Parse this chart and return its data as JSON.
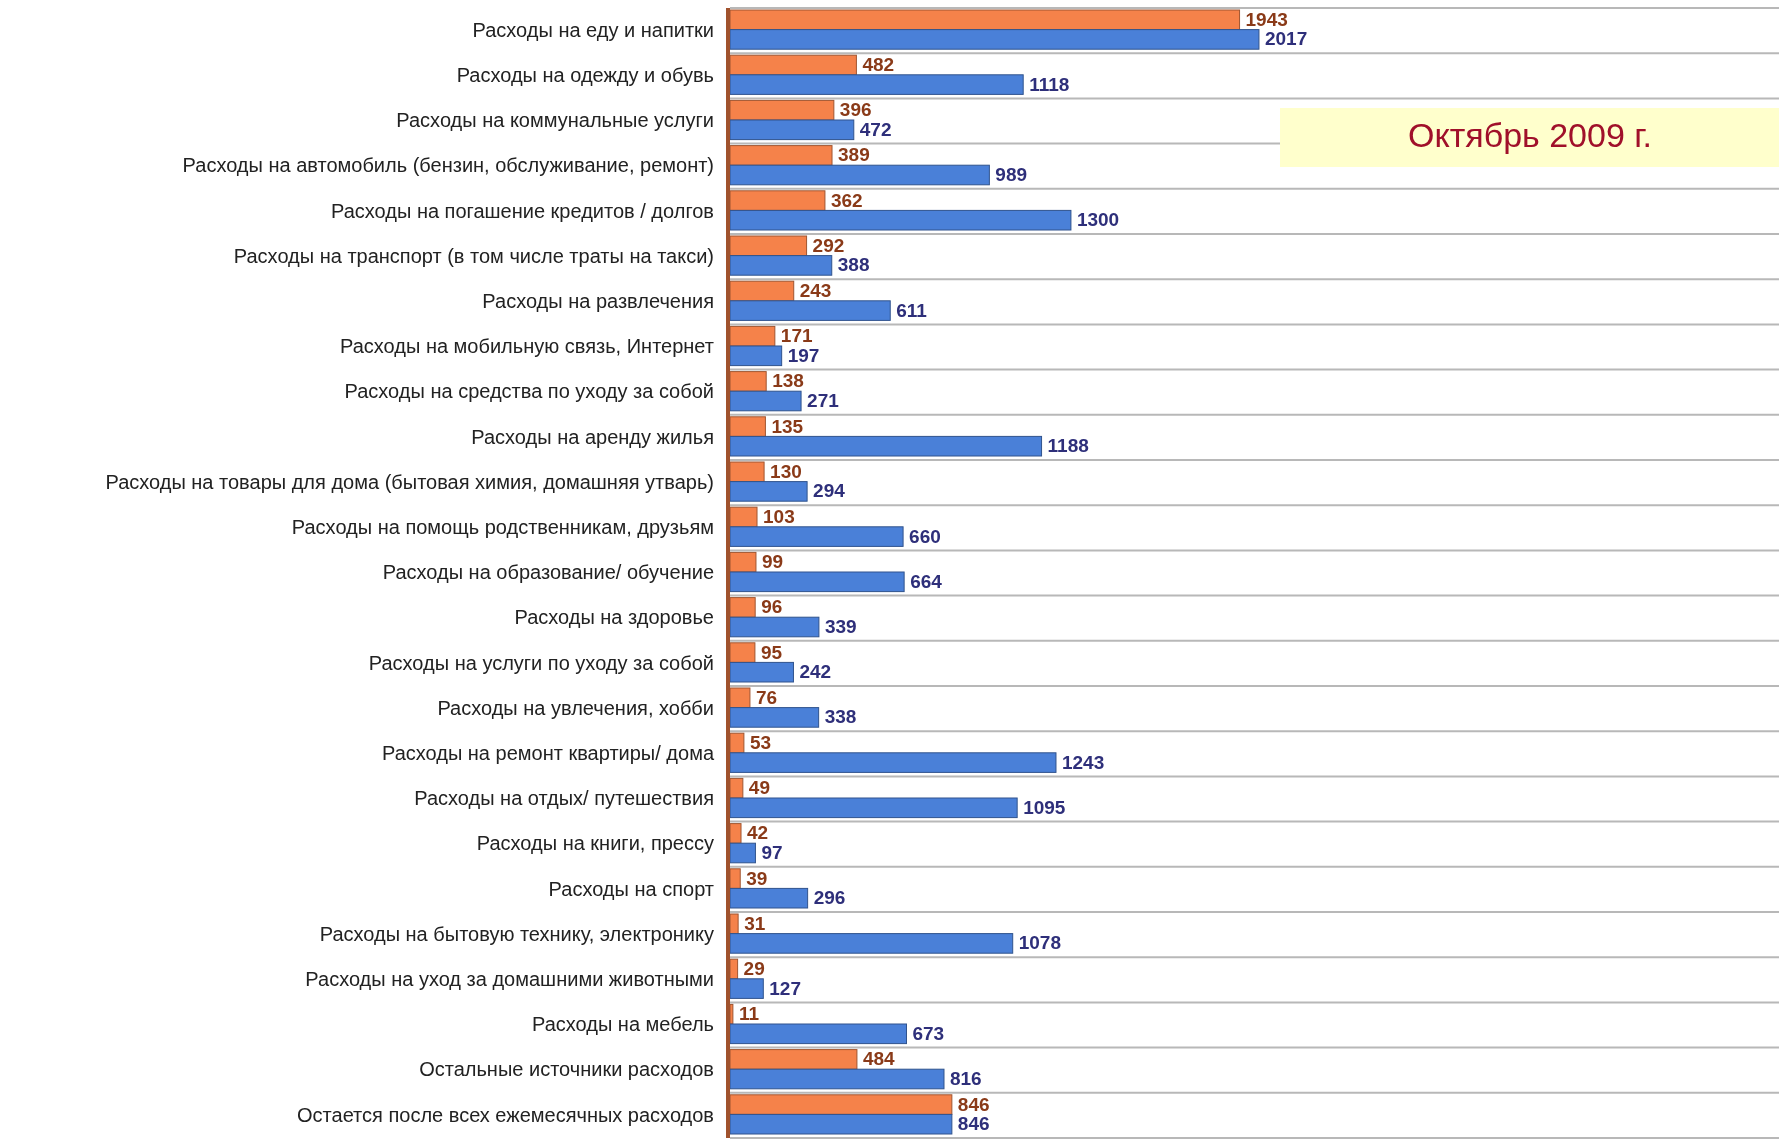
{
  "chart_data": {
    "type": "bar",
    "orientation": "horizontal",
    "data_labels": true,
    "grid": "y",
    "xlim": [
      0,
      4000
    ],
    "tick_labels": "y",
    "categories": [
      "Расходы на еду и напитки",
      "Расходы на одежду и обувь",
      "Расходы на коммунальные услуги",
      "Расходы на автомобиль (бензин, обслуживание, ремонт)",
      "Расходы на погашение кредитов / долгов",
      "Расходы на транспорт (в том числе траты на такси)",
      "Расходы на развлечения",
      "Расходы на мобильную связь, Интернет",
      "Расходы на средства по уходу за собой",
      "Расходы на аренду жилья",
      "Расходы на товары для дома (бытовая химия, домашняя утварь)",
      "Расходы на помощь родственникам, друзьям",
      "Расходы на образование/ обучение",
      "Расходы на здоровье",
      "Расходы на услуги по уходу за собой",
      "Расходы на увлечения, хобби",
      "Расходы на ремонт квартиры/ дома",
      "Расходы на отдых/ путешествия",
      "Расходы на книги, прессу",
      "Расходы на спорт",
      "Расходы на бытовую технику, электронику",
      "Расходы на уход за домашними животными",
      "Расходы на мебель",
      "Остальные источники расходов",
      "Остается после всех ежемесячных расходов"
    ],
    "series": [
      {
        "color": "#f5824a",
        "values": [
          1943,
          482,
          396,
          389,
          362,
          292,
          243,
          171,
          138,
          135,
          130,
          103,
          99,
          96,
          95,
          76,
          53,
          49,
          42,
          39,
          31,
          29,
          11,
          484,
          846
        ]
      },
      {
        "color": "#4a80d8",
        "values": [
          2017,
          1118,
          472,
          989,
          1300,
          388,
          611,
          197,
          271,
          1188,
          294,
          660,
          664,
          339,
          242,
          338,
          1243,
          1095,
          97,
          296,
          1078,
          127,
          673,
          816,
          846
        ]
      }
    ],
    "annotations": [
      "Октябрь 2009 г."
    ]
  }
}
